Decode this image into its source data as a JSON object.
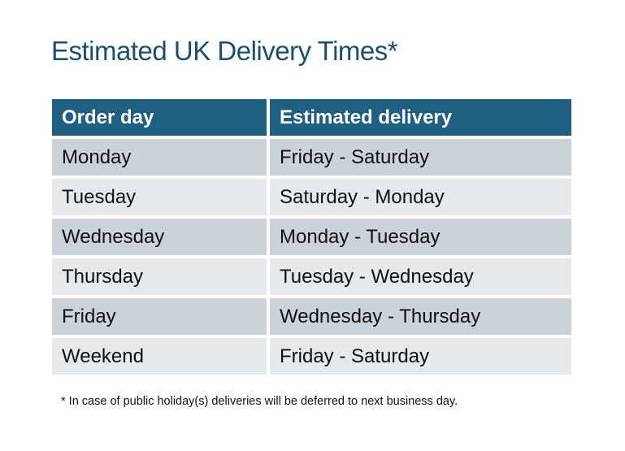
{
  "title": "Estimated UK Delivery Times*",
  "table": {
    "headers": [
      "Order day",
      "Estimated delivery"
    ],
    "rows": [
      [
        "Monday",
        "Friday - Saturday"
      ],
      [
        "Tuesday",
        "Saturday - Monday"
      ],
      [
        "Wednesday",
        "Monday - Tuesday"
      ],
      [
        "Thursday",
        "Tuesday - Wednesday"
      ],
      [
        "Friday",
        "Wednesday - Thursday"
      ],
      [
        "Weekend",
        "Friday - Saturday"
      ]
    ]
  },
  "footnote": "* In case of public holiday(s) deliveries will be deferred to next business day.",
  "colors": {
    "header": "#1f5f82",
    "title": "#1b4f6a",
    "row_dark": "#cdd1d8",
    "row_light": "#e6e8eb"
  }
}
